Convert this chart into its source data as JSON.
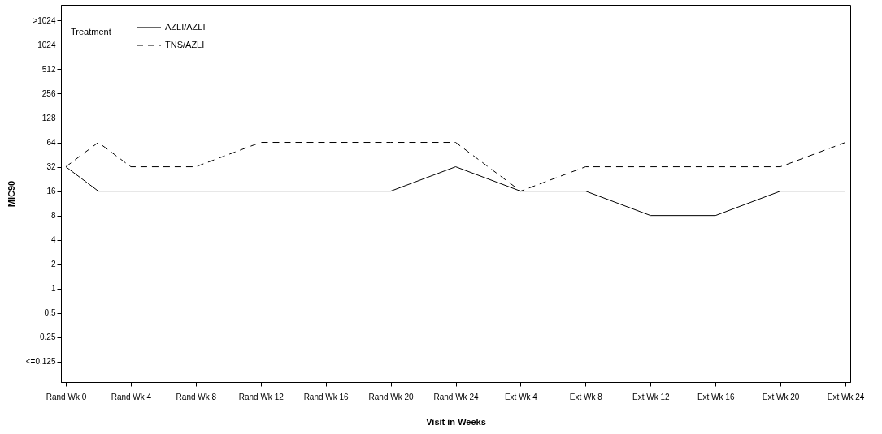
{
  "chart_data": {
    "type": "line",
    "xlabel": "Visit in Weeks",
    "ylabel": "MIC90",
    "legend_title": "Treatment",
    "legend": "top left",
    "log": "y",
    "grid": false,
    "categories": [
      "Rand Wk 0",
      null,
      "Rand Wk 4",
      null,
      "Rand Wk 8",
      null,
      "Rand Wk 12",
      null,
      "Rand Wk 16",
      null,
      "Rand Wk 20",
      null,
      "Rand Wk 24",
      null,
      "Ext Wk 4",
      null,
      "Ext Wk 8",
      null,
      "Ext Wk 12",
      null,
      "Ext Wk 16",
      null,
      "Ext Wk 20",
      null,
      "Ext Wk 24"
    ],
    "ylim": [
      0.07,
      3200
    ],
    "yticks": [
      {
        "value": 0.125,
        "label": "<=0.125"
      },
      0.25,
      0.5,
      1,
      2,
      4,
      8,
      16,
      32,
      64,
      128,
      256,
      512,
      1024,
      {
        "value": 2048,
        "label": ">1024"
      }
    ],
    "series": [
      {
        "name": "AZLI/AZLI",
        "color": "#000000",
        "line_style": "solid",
        "values": [
          32,
          16,
          16,
          null,
          16,
          null,
          16,
          null,
          16,
          null,
          16,
          null,
          32,
          null,
          16,
          null,
          16,
          null,
          8,
          null,
          8,
          null,
          16,
          null,
          16
        ]
      },
      {
        "name": "TNS/AZLI",
        "color": "#000000",
        "line_style": "dashed",
        "values": [
          32,
          64,
          32,
          null,
          32,
          null,
          64,
          null,
          64,
          null,
          64,
          null,
          64,
          null,
          16,
          null,
          32,
          null,
          32,
          null,
          32,
          null,
          32,
          null,
          64
        ]
      }
    ]
  }
}
